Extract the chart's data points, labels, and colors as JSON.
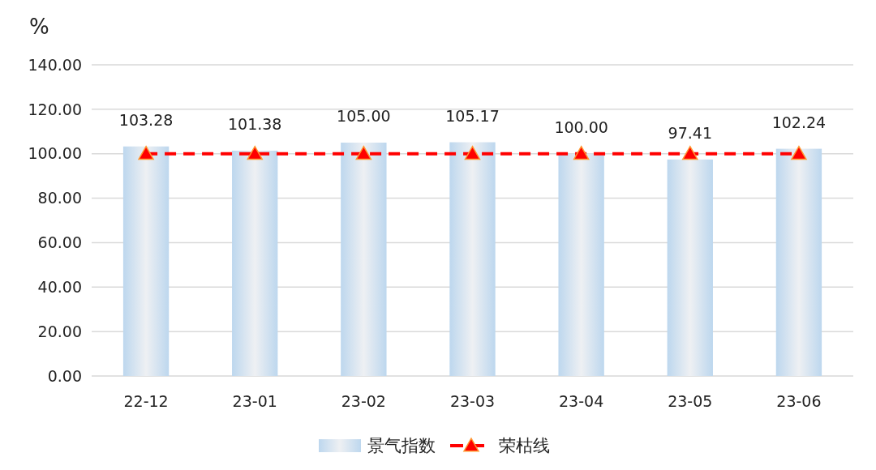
{
  "chart_data": {
    "type": "bar",
    "ylabel": "%",
    "categories": [
      "22-12",
      "23-01",
      "23-02",
      "23-03",
      "23-04",
      "23-05",
      "23-06"
    ],
    "series": [
      {
        "name": "景气指数",
        "color": "#bdd7ee",
        "values": [
          103.28,
          101.38,
          105.0,
          105.17,
          100.0,
          97.41,
          102.24
        ],
        "value_labels": [
          "103.28",
          "101.38",
          "105.00",
          "105.17",
          "100.00",
          "97.41",
          "102.24"
        ]
      },
      {
        "name": "荣枯线",
        "type": "line",
        "color": "#ff0000",
        "values": [
          100,
          100,
          100,
          100,
          100,
          100,
          100
        ],
        "marker": "triangle",
        "line_style": "dashed"
      }
    ],
    "ylim": [
      0,
      140
    ],
    "yticks": [
      {
        "value": 0,
        "label": "0.00"
      },
      {
        "value": 20,
        "label": "20.00"
      },
      {
        "value": 40,
        "label": "40.00"
      },
      {
        "value": 60,
        "label": "60.00"
      },
      {
        "value": 80,
        "label": "80.00"
      },
      {
        "value": 100,
        "label": "100.00"
      },
      {
        "value": 120,
        "label": "120.00"
      },
      {
        "value": 140,
        "label": "140.00"
      }
    ],
    "grid": "y",
    "legend": "bottom"
  }
}
